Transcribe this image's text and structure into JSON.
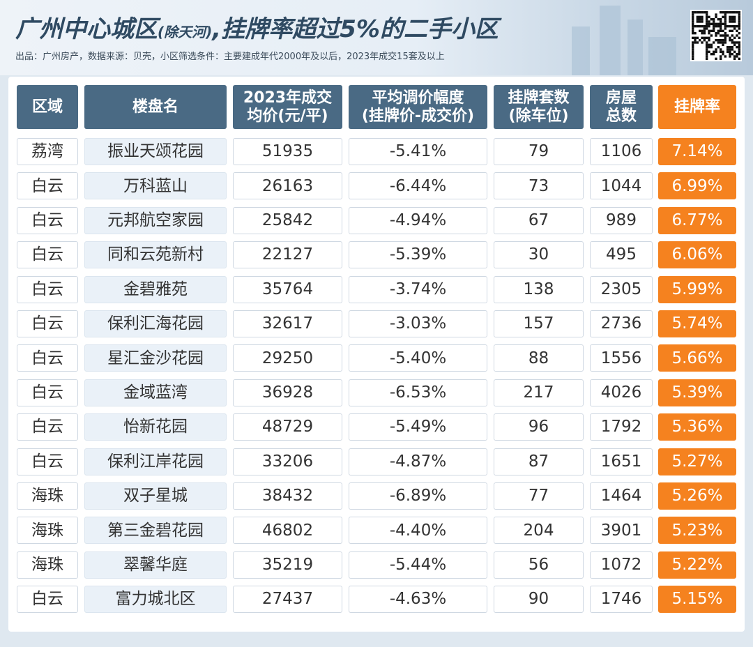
{
  "header": {
    "title": "广州中心城区",
    "title_note": "(除天河)",
    "title_rest": ",挂牌率超过5%的二手小区",
    "subtitle": "出品：广州房产，数据来源：贝壳，小区筛选条件：主要建成年代2000年及以后，2023年成交15套及以上"
  },
  "table": {
    "columns": [
      [
        "区域"
      ],
      [
        "楼盘名"
      ],
      [
        "2023年成交",
        "均价(元/平)"
      ],
      [
        "平均调价幅度",
        "(挂牌价-成交价)"
      ],
      [
        "挂牌套数",
        "(除车位)"
      ],
      [
        "房屋",
        "总数"
      ],
      [
        "挂牌率"
      ]
    ],
    "rows": [
      [
        "荔湾",
        "振业天颂花园",
        "51935",
        "-5.41%",
        "79",
        "1106",
        "7.14%"
      ],
      [
        "白云",
        "万科蓝山",
        "26163",
        "-6.44%",
        "73",
        "1044",
        "6.99%"
      ],
      [
        "白云",
        "元邦航空家园",
        "25842",
        "-4.94%",
        "67",
        "989",
        "6.77%"
      ],
      [
        "白云",
        "同和云苑新村",
        "22127",
        "-5.39%",
        "30",
        "495",
        "6.06%"
      ],
      [
        "白云",
        "金碧雅苑",
        "35764",
        "-3.74%",
        "138",
        "2305",
        "5.99%"
      ],
      [
        "白云",
        "保利汇海花园",
        "32617",
        "-3.03%",
        "157",
        "2736",
        "5.74%"
      ],
      [
        "白云",
        "星汇金沙花园",
        "29250",
        "-5.40%",
        "88",
        "1556",
        "5.66%"
      ],
      [
        "白云",
        "金域蓝湾",
        "36928",
        "-6.53%",
        "217",
        "4026",
        "5.39%"
      ],
      [
        "白云",
        "怡新花园",
        "48729",
        "-5.49%",
        "96",
        "1792",
        "5.36%"
      ],
      [
        "白云",
        "保利江岸花园",
        "33206",
        "-4.87%",
        "87",
        "1651",
        "5.27%"
      ],
      [
        "海珠",
        "双子星城",
        "38432",
        "-6.89%",
        "77",
        "1464",
        "5.26%"
      ],
      [
        "海珠",
        "第三金碧花园",
        "46802",
        "-4.40%",
        "204",
        "3901",
        "5.23%"
      ],
      [
        "海珠",
        "翠馨华庭",
        "35219",
        "-5.44%",
        "56",
        "1072",
        "5.22%"
      ],
      [
        "白云",
        "富力城北区",
        "27437",
        "-4.63%",
        "90",
        "1746",
        "5.15%"
      ]
    ]
  }
}
